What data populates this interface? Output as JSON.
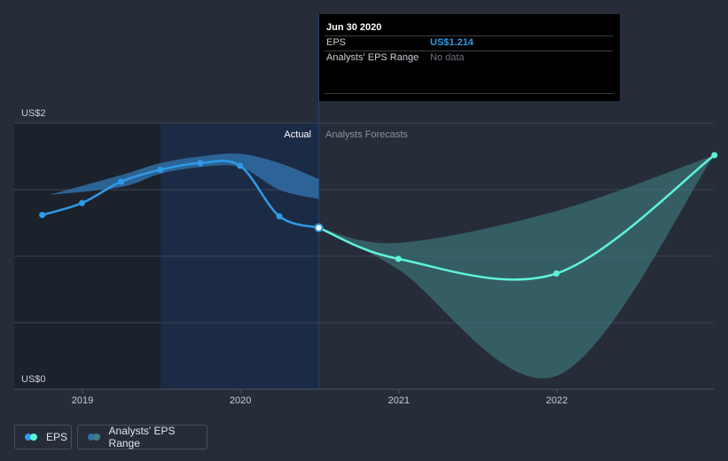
{
  "tooltip": {
    "date": "Jun 30 2020",
    "rows": [
      {
        "label": "EPS",
        "value": "US$1.214"
      },
      {
        "label": "Analysts' EPS Range",
        "value": "No data"
      }
    ]
  },
  "legend": [
    {
      "label": "EPS",
      "colors": [
        "#2f9be6",
        "#5ff3db"
      ]
    },
    {
      "label": "Analysts' EPS Range",
      "colors": [
        "#2f6ea6",
        "#3f7f82"
      ]
    }
  ],
  "colors": {
    "background": "#262d39",
    "eps_actual": "#2f9be6",
    "eps_forecast": "#5ff3db",
    "range_actual": "#2f6ea6",
    "range_forecast": "#3f7f82",
    "past_shade": "#1c222b",
    "actual_region": "#1b2c48"
  },
  "chart_data": {
    "type": "line",
    "y_unit": "US$",
    "ylim": [
      0,
      2
    ],
    "y_tick_labels": [
      {
        "value": 2,
        "label": "US$2"
      },
      {
        "value": 0,
        "label": "US$0"
      }
    ],
    "y_gridlines": [
      0.5,
      1.0,
      1.5,
      2.0
    ],
    "x_tick_labels": [
      {
        "date": "2019-01-01",
        "label": "2019"
      },
      {
        "date": "2020-01-01",
        "label": "2020"
      },
      {
        "date": "2021-01-01",
        "label": "2021"
      },
      {
        "date": "2022-01-01",
        "label": "2022"
      }
    ],
    "xlim": [
      "2018-08-01",
      "2022-12-31"
    ],
    "past_shade_until": "2019-07-01",
    "actual_start": "2019-07-01",
    "divider_date": "2020-06-30",
    "region_labels": {
      "actual": "Actual",
      "forecast": "Analysts Forecasts"
    },
    "series": [
      {
        "name": "EPS",
        "part": "actual",
        "points": [
          {
            "x": "2018-09-30",
            "y": 1.31
          },
          {
            "x": "2018-12-31",
            "y": 1.4
          },
          {
            "x": "2019-03-31",
            "y": 1.56
          },
          {
            "x": "2019-06-30",
            "y": 1.65
          },
          {
            "x": "2019-09-30",
            "y": 1.7
          },
          {
            "x": "2019-12-31",
            "y": 1.68
          },
          {
            "x": "2020-03-31",
            "y": 1.3
          },
          {
            "x": "2020-06-30",
            "y": 1.214
          }
        ]
      },
      {
        "name": "EPS",
        "part": "forecast",
        "points": [
          {
            "x": "2020-06-30",
            "y": 1.214
          },
          {
            "x": "2020-12-31",
            "y": 0.98
          },
          {
            "x": "2021-12-31",
            "y": 0.87
          },
          {
            "x": "2022-12-31",
            "y": 1.76
          }
        ]
      }
    ],
    "range_past": {
      "name": "Analysts' EPS Range",
      "x": [
        "2018-10-15",
        "2019-03-31",
        "2019-06-30",
        "2019-09-30",
        "2019-12-31",
        "2020-03-31",
        "2020-06-30"
      ],
      "upper": [
        1.46,
        1.61,
        1.7,
        1.75,
        1.77,
        1.7,
        1.58
      ],
      "lower": [
        1.46,
        1.52,
        1.62,
        1.67,
        1.67,
        1.5,
        1.43
      ]
    },
    "range_forecast": {
      "name": "Analysts' EPS Range",
      "x": [
        "2020-06-30",
        "2020-12-31",
        "2021-12-31",
        "2022-12-31"
      ],
      "upper": [
        1.214,
        1.1,
        1.34,
        1.76
      ],
      "lower": [
        1.214,
        0.9,
        0.1,
        1.76
      ]
    }
  }
}
